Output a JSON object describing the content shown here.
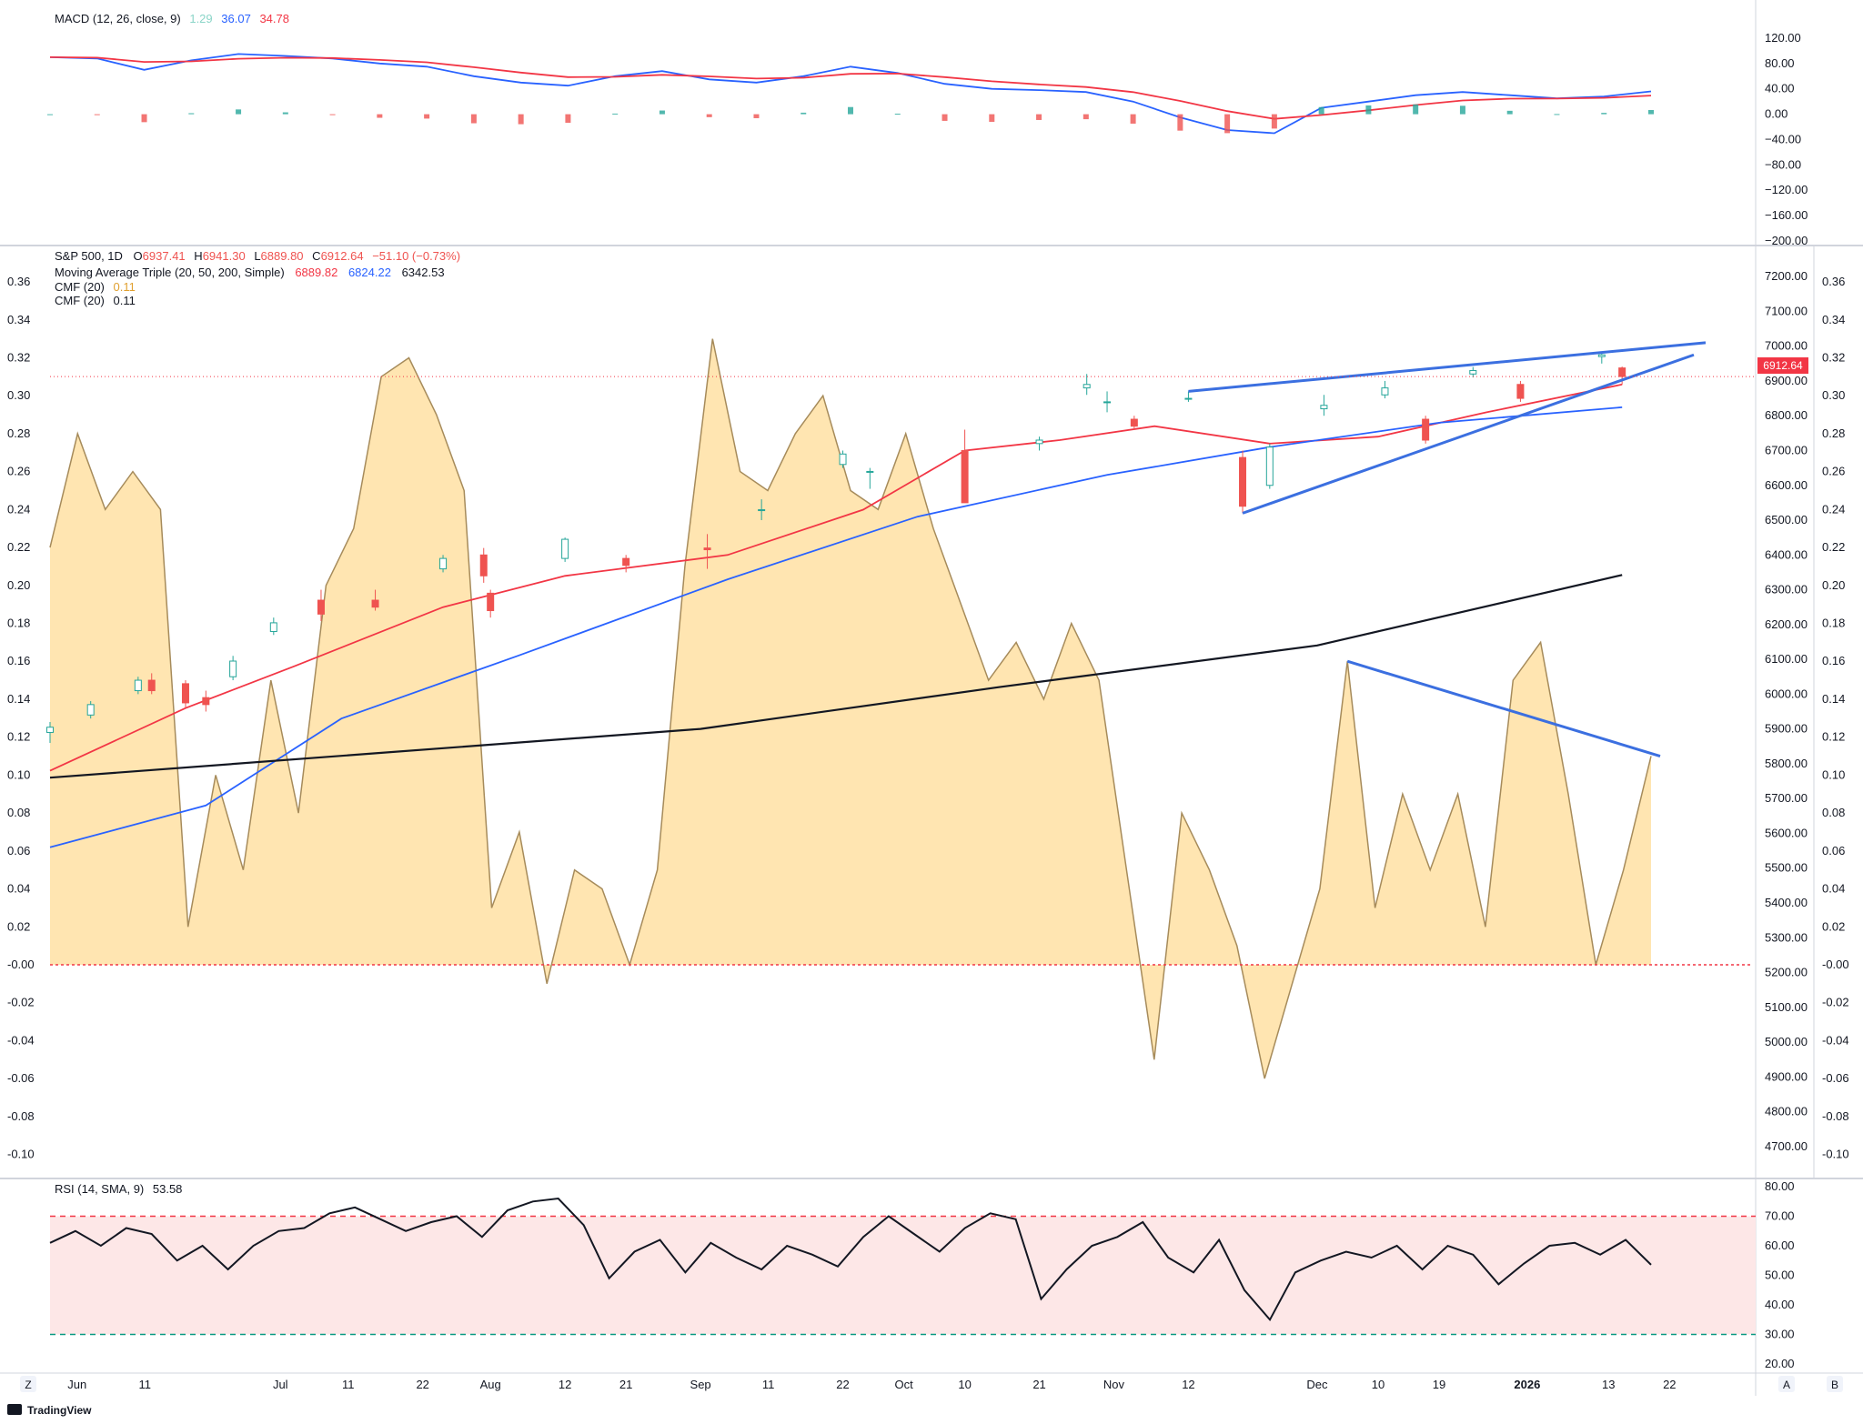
{
  "app": {
    "brand": "TradingView"
  },
  "macd": {
    "legend": "MACD (12, 26, close, 9)",
    "hist_value": "1.29",
    "macd_value": "36.07",
    "signal_value": "34.78",
    "ticks": [
      "120.00",
      "80.00",
      "40.00",
      "0.00",
      "−40.00",
      "−80.00",
      "−120.00",
      "−160.00",
      "−200.00"
    ]
  },
  "price": {
    "symbol_line": "S&P 500, 1D",
    "o_label": "O",
    "o": "6937.41",
    "h_label": "H",
    "h": "6941.30",
    "l_label": "L",
    "l": "6889.80",
    "c_label": "C",
    "c": "6912.64",
    "change": "−51.10 (−0.73%)",
    "ma_legend": "Moving Average Triple (20, 50, 200, Simple)",
    "ma20": "6889.82",
    "ma50": "6824.22",
    "ma200": "6342.53",
    "cmf_legend_1": "CMF (20)",
    "cmf_value_1": "0.11",
    "cmf_legend_2": "CMF (20)",
    "cmf_value_2": "0.11",
    "last_price_badge": "6912.64",
    "right_ticks": [
      "7200.00",
      "7100.00",
      "7000.00",
      "6900.00",
      "6800.00",
      "6700.00",
      "6600.00",
      "6500.00",
      "6400.00",
      "6300.00",
      "6200.00",
      "6100.00",
      "6000.00",
      "5900.00",
      "5800.00",
      "5700.00",
      "5600.00",
      "5500.00",
      "5400.00",
      "5300.00",
      "5200.00",
      "5100.00",
      "5000.00",
      "4900.00",
      "4800.00",
      "4700.00"
    ],
    "cmf_ticks": [
      "0.36",
      "0.34",
      "0.32",
      "0.30",
      "0.28",
      "0.26",
      "0.24",
      "0.22",
      "0.20",
      "0.18",
      "0.16",
      "0.14",
      "0.12",
      "0.10",
      "0.08",
      "0.06",
      "0.04",
      "0.02",
      "-0.00",
      "-0.02",
      "-0.04",
      "-0.06",
      "-0.08",
      "-0.10"
    ],
    "cmf_ticks_right": [
      "0.36",
      "0.34",
      "0.32",
      "0.30",
      "0.28",
      "0.26",
      "0.24",
      "0.22",
      "0.20",
      "0.18",
      "0.16",
      "0.14",
      "0.12",
      "0.10",
      "0.08",
      "0.06",
      "0.04",
      "0.02",
      "-0.00",
      "-0.02",
      "-0.04",
      "-0.06",
      "-0.08",
      "-0.10"
    ]
  },
  "rsi": {
    "legend": "RSI (14, SMA, 9)",
    "value": "53.58",
    "ticks": [
      "80.00",
      "70.00",
      "60.00",
      "50.00",
      "40.00",
      "30.00",
      "20.00"
    ]
  },
  "time_axis": {
    "labels": [
      "Jun",
      "11",
      "Jul",
      "11",
      "22",
      "Aug",
      "12",
      "21",
      "Sep",
      "11",
      "22",
      "Oct",
      "10",
      "21",
      "Nov",
      "12",
      "Dec",
      "10",
      "19",
      "2026",
      "13",
      "22"
    ],
    "left_corner": "Z",
    "right_corner_a": "A",
    "right_corner_b": "B"
  },
  "colors": {
    "up": "#26a69a",
    "down": "#ef5350",
    "ma20": "#f23645",
    "ma50": "#2962ff",
    "ma200": "#131722",
    "cmf_fill": "#ffe0a3",
    "cmf_line": "#a68b5b",
    "trend": "#3b6fe0",
    "rsi_band": "#fde7e7",
    "rsi_upper": "#f23645",
    "rsi_lower": "#089981"
  },
  "chart_data": [
    {
      "type": "candlestick",
      "title": "S&P 500, 1D",
      "ylim": [
        4650,
        7250
      ],
      "x_range": [
        "2025-05-28",
        "2026-01-28"
      ],
      "candles": [
        {
          "d": "2025-05-28",
          "o": 5890,
          "h": 5920,
          "l": 5860,
          "c": 5905
        },
        {
          "d": "2025-06-03",
          "o": 5940,
          "h": 5980,
          "l": 5930,
          "c": 5970
        },
        {
          "d": "2025-06-10",
          "o": 6010,
          "h": 6050,
          "l": 6000,
          "c": 6040
        },
        {
          "d": "2025-06-12",
          "o": 6040,
          "h": 6060,
          "l": 6000,
          "c": 6010
        },
        {
          "d": "2025-06-17",
          "o": 6030,
          "h": 6040,
          "l": 5960,
          "c": 5975
        },
        {
          "d": "2025-06-20",
          "o": 5990,
          "h": 6010,
          "l": 5950,
          "c": 5970
        },
        {
          "d": "2025-06-24",
          "o": 6050,
          "h": 6110,
          "l": 6040,
          "c": 6095
        },
        {
          "d": "2025-06-30",
          "o": 6180,
          "h": 6220,
          "l": 6170,
          "c": 6205
        },
        {
          "d": "2025-07-07",
          "o": 6270,
          "h": 6300,
          "l": 6210,
          "c": 6230
        },
        {
          "d": "2025-07-15",
          "o": 6270,
          "h": 6300,
          "l": 6240,
          "c": 6250
        },
        {
          "d": "2025-07-25",
          "o": 6360,
          "h": 6400,
          "l": 6350,
          "c": 6390
        },
        {
          "d": "2025-07-31",
          "o": 6400,
          "h": 6420,
          "l": 6320,
          "c": 6340
        },
        {
          "d": "2025-08-01",
          "o": 6290,
          "h": 6300,
          "l": 6220,
          "c": 6240
        },
        {
          "d": "2025-08-12",
          "o": 6390,
          "h": 6450,
          "l": 6380,
          "c": 6445
        },
        {
          "d": "2025-08-21",
          "o": 6390,
          "h": 6400,
          "l": 6350,
          "c": 6370
        },
        {
          "d": "2025-09-02",
          "o": 6420,
          "h": 6460,
          "l": 6360,
          "c": 6415
        },
        {
          "d": "2025-09-10",
          "o": 6530,
          "h": 6560,
          "l": 6500,
          "c": 6530
        },
        {
          "d": "2025-09-22",
          "o": 6660,
          "h": 6700,
          "l": 6650,
          "c": 6690
        },
        {
          "d": "2025-09-26",
          "o": 6640,
          "h": 6650,
          "l": 6590,
          "c": 6640
        },
        {
          "d": "2025-10-10",
          "o": 6700,
          "h": 6760,
          "l": 6550,
          "c": 6550
        },
        {
          "d": "2025-10-21",
          "o": 6720,
          "h": 6740,
          "l": 6700,
          "c": 6730
        },
        {
          "d": "2025-10-28",
          "o": 6880,
          "h": 6920,
          "l": 6860,
          "c": 6890
        },
        {
          "d": "2025-10-31",
          "o": 6840,
          "h": 6870,
          "l": 6810,
          "c": 6840
        },
        {
          "d": "2025-11-04",
          "o": 6790,
          "h": 6800,
          "l": 6760,
          "c": 6770
        },
        {
          "d": "2025-11-12",
          "o": 6850,
          "h": 6870,
          "l": 6840,
          "c": 6850
        },
        {
          "d": "2025-11-20",
          "o": 6680,
          "h": 6700,
          "l": 6520,
          "c": 6540
        },
        {
          "d": "2025-11-24",
          "o": 6600,
          "h": 6720,
          "l": 6590,
          "c": 6710
        },
        {
          "d": "2025-12-02",
          "o": 6820,
          "h": 6860,
          "l": 6800,
          "c": 6830
        },
        {
          "d": "2025-12-11",
          "o": 6860,
          "h": 6900,
          "l": 6850,
          "c": 6880
        },
        {
          "d": "2025-12-17",
          "o": 6790,
          "h": 6800,
          "l": 6720,
          "c": 6730
        },
        {
          "d": "2025-12-24",
          "o": 6920,
          "h": 6940,
          "l": 6910,
          "c": 6930
        },
        {
          "d": "2025-12-31",
          "o": 6890,
          "h": 6900,
          "l": 6840,
          "c": 6850
        },
        {
          "d": "2026-01-12",
          "o": 6970,
          "h": 6980,
          "l": 6950,
          "c": 6975
        },
        {
          "d": "2026-01-15",
          "o": 6937.41,
          "h": 6941.3,
          "l": 6889.8,
          "c": 6912.64
        }
      ],
      "series": [
        {
          "name": "MA 20",
          "values": [
            [
              "2025-05-28",
              5780
            ],
            [
              "2025-06-17",
              5960
            ],
            [
              "2025-07-03",
              6080
            ],
            [
              "2025-07-25",
              6250
            ],
            [
              "2025-08-12",
              6340
            ],
            [
              "2025-09-05",
              6400
            ],
            [
              "2025-09-25",
              6530
            ],
            [
              "2025-10-10",
              6700
            ],
            [
              "2025-10-24",
              6730
            ],
            [
              "2025-11-07",
              6770
            ],
            [
              "2025-11-24",
              6720
            ],
            [
              "2025-12-10",
              6740
            ],
            [
              "2025-12-26",
              6810
            ],
            [
              "2026-01-15",
              6889.82
            ]
          ]
        },
        {
          "name": "MA 50",
          "values": [
            [
              "2025-05-28",
              5560
            ],
            [
              "2025-06-20",
              5680
            ],
            [
              "2025-07-10",
              5930
            ],
            [
              "2025-08-05",
              6110
            ],
            [
              "2025-09-05",
              6330
            ],
            [
              "2025-10-03",
              6510
            ],
            [
              "2025-10-31",
              6630
            ],
            [
              "2025-11-24",
              6710
            ],
            [
              "2025-12-19",
              6780
            ],
            [
              "2026-01-15",
              6824.22
            ]
          ]
        },
        {
          "name": "MA 200",
          "values": [
            [
              "2025-05-28",
              5760
            ],
            [
              "2025-07-15",
              5830
            ],
            [
              "2025-09-01",
              5900
            ],
            [
              "2025-10-15",
              6020
            ],
            [
              "2025-12-01",
              6140
            ],
            [
              "2026-01-15",
              6342.53
            ]
          ]
        }
      ]
    },
    {
      "type": "area",
      "title": "CMF (20)",
      "ylim": [
        -0.105,
        0.372
      ],
      "series": [
        {
          "name": "CMF (20)",
          "values": [
            0.22,
            0.28,
            0.24,
            0.26,
            0.24,
            0.02,
            0.1,
            0.05,
            0.15,
            0.08,
            0.2,
            0.23,
            0.31,
            0.32,
            0.29,
            0.25,
            0.03,
            0.07,
            -0.01,
            0.05,
            0.04,
            0.0,
            0.05,
            0.21,
            0.33,
            0.26,
            0.25,
            0.28,
            0.3,
            0.25,
            0.24,
            0.28,
            0.23,
            0.19,
            0.15,
            0.17,
            0.14,
            0.18,
            0.15,
            0.05,
            -0.05,
            0.08,
            0.05,
            0.01,
            -0.06,
            -0.01,
            0.04,
            0.16,
            0.03,
            0.09,
            0.05,
            0.09,
            0.02,
            0.15,
            0.17,
            0.09,
            0.0,
            0.05,
            0.11
          ]
        }
      ]
    },
    {
      "type": "line",
      "title": "RSI (14, SMA, 9)",
      "ylim": [
        20,
        80
      ],
      "series": [
        {
          "name": "RSI",
          "values": [
            61,
            65,
            60,
            66,
            64,
            55,
            60,
            52,
            60,
            65,
            66,
            71,
            73,
            69,
            65,
            68,
            70,
            63,
            72,
            75,
            76,
            67,
            49,
            58,
            62,
            51,
            61,
            56,
            52,
            60,
            57,
            53,
            63,
            70,
            64,
            58,
            66,
            71,
            69,
            42,
            52,
            60,
            63,
            68,
            56,
            51,
            62,
            45,
            35,
            51,
            55,
            58,
            56,
            60,
            52,
            60,
            57,
            47,
            54,
            60,
            61,
            57,
            62,
            53.58
          ]
        }
      ]
    },
    {
      "type": "bar",
      "title": "MACD (12, 26, close, 9)",
      "ylim": [
        -200,
        130
      ],
      "series": [
        {
          "name": "MACD",
          "values": [
            90,
            88,
            70,
            85,
            95,
            92,
            88,
            80,
            75,
            60,
            50,
            45,
            60,
            68,
            55,
            50,
            60,
            75,
            65,
            48,
            40,
            38,
            35,
            20,
            -5,
            -25,
            -30,
            10,
            20,
            30,
            35,
            30,
            25,
            28,
            36.07
          ]
        }
      ]
    }
  ]
}
